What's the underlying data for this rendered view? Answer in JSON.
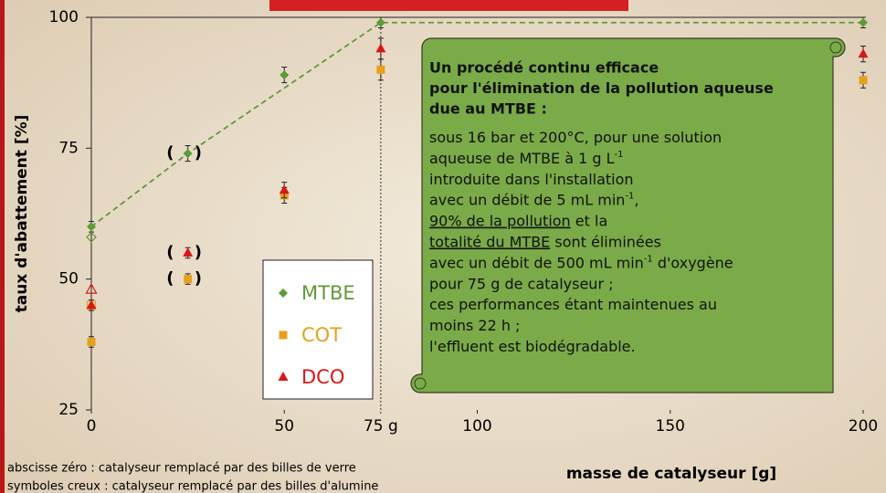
{
  "chart_data": {
    "type": "scatter",
    "xlabel": "masse de catalyseur [g]",
    "ylabel": "taux d'abattement [%]",
    "xlim": [
      0,
      200
    ],
    "ylim": [
      25,
      100
    ],
    "xticks": [
      0,
      50,
      100,
      150,
      200
    ],
    "yticks": [
      25,
      50,
      75,
      100
    ],
    "series": [
      {
        "name": "MTBE",
        "color": "#5f9a38",
        "marker": "diamond",
        "x": [
          0,
          25,
          50,
          75,
          200
        ],
        "values": [
          60,
          74,
          89,
          99,
          99
        ],
        "errors": [
          1,
          1.5,
          1.5,
          1,
          1
        ],
        "hollow_x": [
          0
        ],
        "hollow_values": [
          58
        ]
      },
      {
        "name": "COT",
        "color": "#e6a01e",
        "marker": "square",
        "x": [
          0,
          25,
          50,
          75,
          200
        ],
        "values": [
          38,
          50,
          66,
          90,
          88
        ],
        "errors": [
          1,
          1,
          1.5,
          2,
          1.5
        ],
        "hollow_x": [
          0
        ],
        "hollow_values": [
          45
        ]
      },
      {
        "name": "DCO",
        "color": "#d81818",
        "marker": "triangle",
        "x": [
          0,
          25,
          50,
          75,
          200
        ],
        "values": [
          45,
          55,
          67,
          94,
          93
        ],
        "errors": [
          1,
          1,
          1.5,
          2,
          1.5
        ],
        "hollow_x": [
          0
        ],
        "hollow_values": [
          48
        ]
      }
    ],
    "trend": {
      "color": "#5f9a38",
      "x": [
        0,
        25,
        75,
        200
      ],
      "values": [
        60,
        74,
        99,
        99
      ]
    },
    "brackets": [
      "( )",
      "( )",
      "( )"
    ],
    "x_marker": {
      "value": 75,
      "label": "75 g"
    },
    "legend": "center",
    "annotation": {
      "title_lines": [
        "Un procédé continu efficace",
        "pour l'élimination de la pollution aqueuse",
        "due au MTBE :"
      ],
      "lines": [
        [
          {
            "t": "sous 16 bar et 200°C, pour une solution"
          }
        ],
        [
          {
            "t": "aqueuse de MTBE à 1 g L"
          },
          {
            "t": "-1",
            "sup": true
          }
        ],
        [
          {
            "t": "introduite dans l'installation"
          }
        ],
        [
          {
            "t": "avec un débit de 5 mL min"
          },
          {
            "t": "-1",
            "sup": true
          },
          {
            "t": ","
          }
        ],
        [
          {
            "t": "90% de la pollution",
            "u": true
          },
          {
            "t": " et la"
          }
        ],
        [
          {
            "t": "totalité du MTBE",
            "u": true
          },
          {
            "t": " sont éliminées"
          }
        ],
        [
          {
            "t": "avec un débit de 500 mL min"
          },
          {
            "t": "-1",
            "sup": true
          },
          {
            "t": " d'oxygène"
          }
        ],
        [
          {
            "t": "pour 75 g de catalyseur ;"
          }
        ],
        [
          {
            "t": "ces performances étant maintenues au"
          }
        ],
        [
          {
            "t": "moins 22 h ;"
          }
        ],
        [
          {
            "t": "l'effluent est biodégradable."
          }
        ]
      ]
    },
    "footnotes": [
      "abscisse zéro : catalyseur remplacé par des billes de verre",
      "symboles creux : catalyseur remplacé par des billes d'alumine"
    ]
  }
}
